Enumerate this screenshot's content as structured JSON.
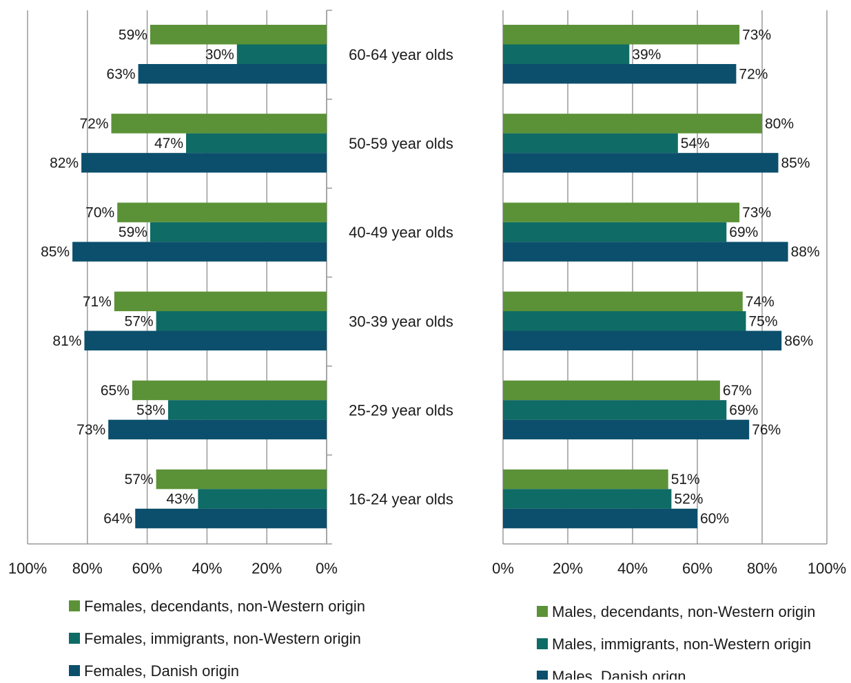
{
  "chart_data": [
    {
      "type": "bar",
      "orientation": "horizontal",
      "direction": "reversed",
      "categories": [
        "60-64 year olds",
        "50-59 year olds",
        "40-49 year olds",
        "30-39 year olds",
        "25-29 year olds",
        "16-24 year olds"
      ],
      "series": [
        {
          "name": "Females, decendants, non-Western origin",
          "color": "#5b9237",
          "values": [
            59,
            72,
            70,
            71,
            65,
            57
          ]
        },
        {
          "name": "Females, immigrants, non-Western origin",
          "color": "#0f6b65",
          "values": [
            30,
            47,
            59,
            57,
            53,
            43
          ]
        },
        {
          "name": "Females, Danish origin",
          "color": "#0b4f6c",
          "values": [
            63,
            82,
            85,
            81,
            73,
            64
          ]
        }
      ],
      "value_suffix": "%",
      "xlim": [
        0,
        100
      ],
      "x_ticks": [
        "100%",
        "80%",
        "60%",
        "40%",
        "20%",
        "0%"
      ],
      "grid": true,
      "legend_position": "bottom"
    },
    {
      "type": "bar",
      "orientation": "horizontal",
      "direction": "normal",
      "categories": [
        "60-64 year olds",
        "50-59 year olds",
        "40-49 year olds",
        "30-39 year olds",
        "25-29 year olds",
        "16-24 year olds"
      ],
      "series": [
        {
          "name": "Males, decendants, non-Western origin",
          "color": "#5b9237",
          "values": [
            73,
            80,
            73,
            74,
            67,
            51
          ]
        },
        {
          "name": "Males, immigrants, non-Western origin",
          "color": "#0f6b65",
          "values": [
            39,
            54,
            69,
            75,
            69,
            52
          ]
        },
        {
          "name": "Males, Danish orign",
          "color": "#0b4f6c",
          "values": [
            72,
            85,
            88,
            86,
            76,
            60
          ]
        }
      ],
      "value_suffix": "%",
      "xlim": [
        0,
        100
      ],
      "x_ticks": [
        "0%",
        "20%",
        "40%",
        "60%",
        "80%",
        "100%"
      ],
      "grid": true,
      "legend_position": "bottom"
    }
  ]
}
